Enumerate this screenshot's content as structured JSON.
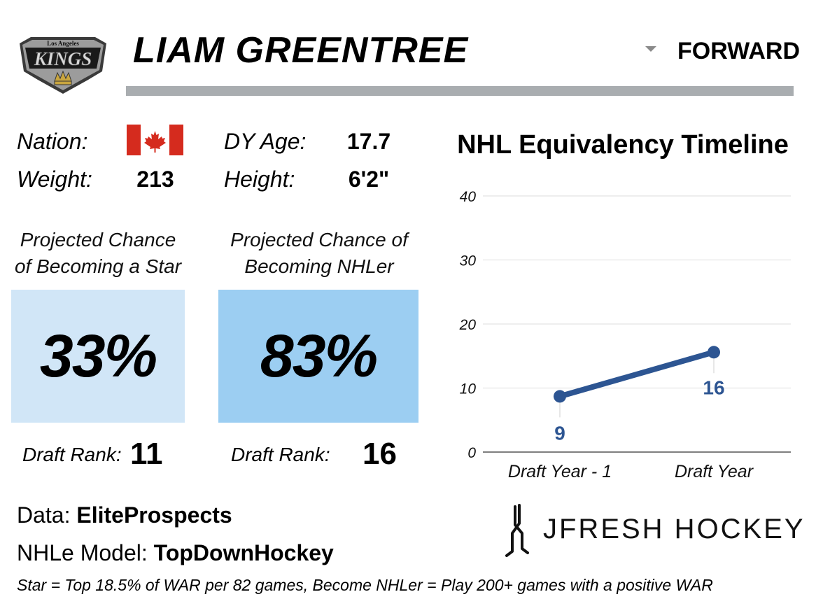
{
  "header": {
    "team_logo": {
      "line1": "Los Angeles",
      "line2": "KINGS"
    },
    "player_name": "LIAM GREENTREE",
    "position": "FORWARD"
  },
  "bio": {
    "nation_label": "Nation:",
    "nation_flag": "canada-flag-icon",
    "weight_label": "Weight:",
    "weight_value": "213",
    "age_label": "DY Age:",
    "age_value": "17.7",
    "height_label": "Height:",
    "height_value": "6'2\""
  },
  "projections": {
    "star": {
      "title_line1": "Projected Chance",
      "title_line2": "of Becoming a Star",
      "value": "33%",
      "rank_label": "Draft Rank:",
      "rank_value": "11",
      "color": "#d1e6f7"
    },
    "nhler": {
      "title_line1": "Projected Chance of",
      "title_line2": "Becoming NHLer",
      "value": "83%",
      "rank_label": "Draft Rank:",
      "rank_value": "16",
      "color": "#9ccef2"
    }
  },
  "chart_data": {
    "type": "line",
    "title": "NHL Equivalency Timeline",
    "categories": [
      "Draft Year - 1",
      "Draft Year"
    ],
    "values": [
      8.7,
      15.6
    ],
    "labels": [
      "9",
      "16"
    ],
    "ylim": [
      0,
      40
    ],
    "yticks": [
      0,
      10,
      20,
      30,
      40
    ],
    "grid": true,
    "line_color": "#2d5592"
  },
  "footer": {
    "data_label": "Data: ",
    "data_value": "EliteProspects",
    "model_label": "NHLe Model: ",
    "model_value": "TopDownHockey",
    "footnote": "Star = Top 18.5% of WAR per 82 games, Become NHLer = Play 200+ games with a positive WAR",
    "brand": "JFRESH HOCKEY"
  }
}
